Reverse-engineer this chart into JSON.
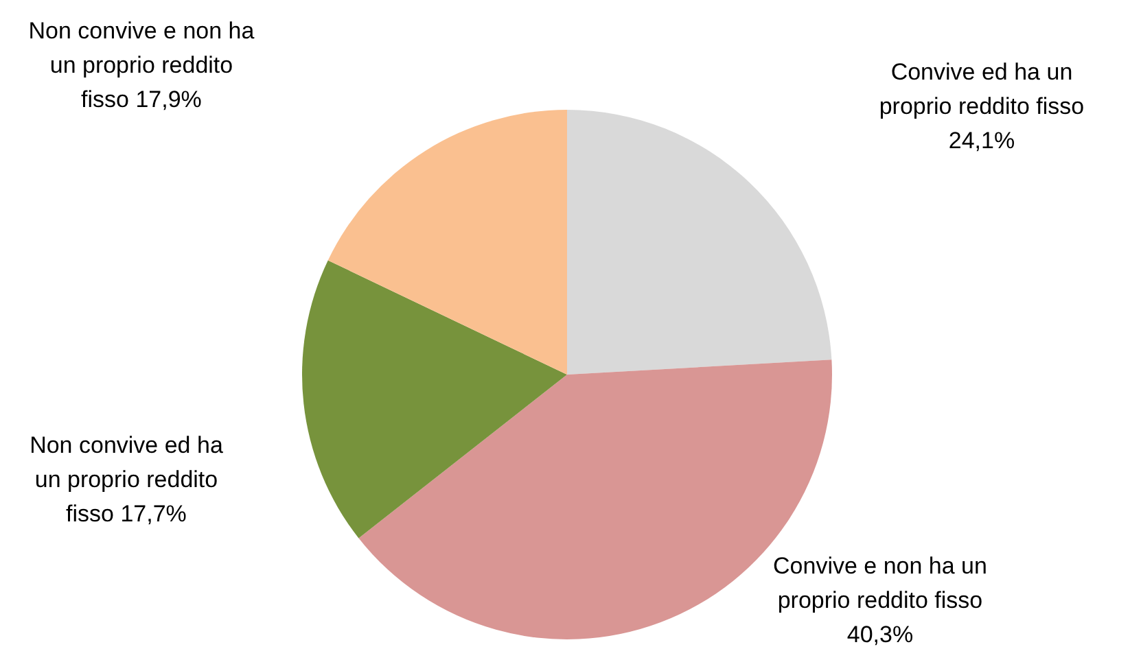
{
  "chart_data": {
    "type": "pie",
    "categories": [
      "Convive ed ha un proprio reddito fisso",
      "Convive e non ha un proprio reddito fisso",
      "Non convive ed ha un proprio reddito fisso",
      "Non convive e non ha un proprio reddito fisso"
    ],
    "values": [
      24.1,
      40.3,
      17.7,
      17.9
    ],
    "value_labels": [
      "24,1%",
      "40,3%",
      "17,7%",
      "17,9%"
    ],
    "colors": [
      "#d9d9d9",
      "#d99694",
      "#77933c",
      "#fac090"
    ]
  }
}
